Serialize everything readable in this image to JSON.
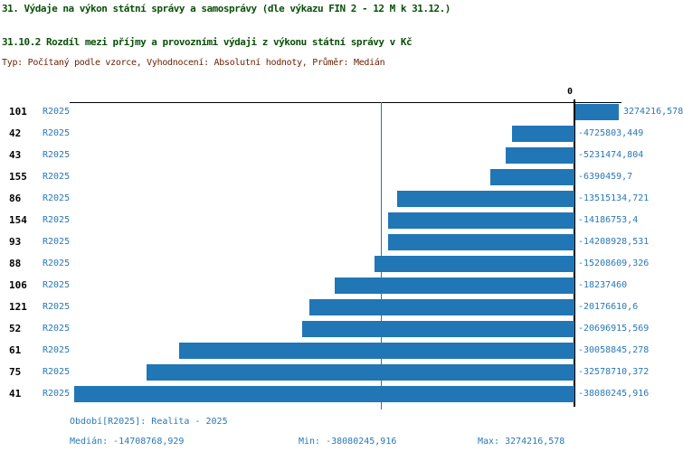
{
  "title": "31. Výdaje na výkon státní správy a samosprávy (dle výkazu FIN 2 - 12 M k 31.12.)",
  "subtitle": "31.10.2 Rozdíl mezi příjmy a provozními výdaji z výkonu státní správy v Kč",
  "meta_line": "Typ: Počítaný podle vzorce, Vyhodnocení: Absolutní hodnoty, Průměr: Medián",
  "colors": {
    "bar": "#2176b5",
    "text_blue": "#2878b8",
    "title_green": "#0a500a",
    "meta_maroon": "#6e2000",
    "axis_black": "#000000"
  },
  "chart_data": {
    "type": "bar",
    "orientation": "horizontal",
    "zero_tick_label": "0",
    "series_label": "R2025",
    "categories": [
      "101",
      "42",
      "43",
      "155",
      "86",
      "154",
      "93",
      "88",
      "106",
      "121",
      "52",
      "61",
      "75",
      "41"
    ],
    "values": [
      3274216.578,
      -4725803.449,
      -5231474.804,
      -6390459.7,
      -13515134.721,
      -14186753.4,
      -14208928.531,
      -15208609.326,
      -18237460,
      -20176610.6,
      -20696915.569,
      -30058845.278,
      -32578710.372,
      -38080245.916
    ],
    "value_labels": [
      "3274216,578",
      "-4725803,449",
      "-5231474,804",
      "-6390459,7",
      "-13515134,721",
      "-14186753,4",
      "-14208928,531",
      "-15208609,326",
      "-18237460",
      "-20176610,6",
      "-20696915,569",
      "-30058845,278",
      "-32578710,372",
      "-38080245,916"
    ],
    "median_value": -14708768.929,
    "xlim": [
      -38600000,
      3800000
    ],
    "grid": false,
    "legend_position": "none"
  },
  "footer": {
    "period_label": "Období[R2025]: Realita - 2025",
    "median_label": "Medián: -14708768,929",
    "min_label": "Min: -38080245,916",
    "max_label": "Max: 3274216,578"
  }
}
